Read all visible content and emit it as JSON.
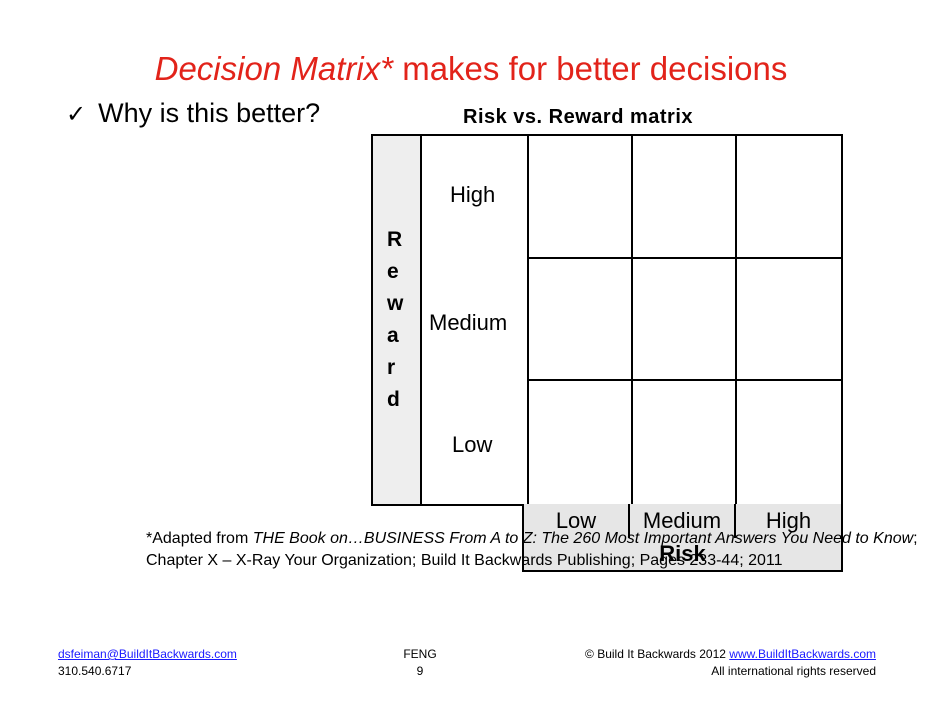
{
  "slide": {
    "title_italic": "Decision Matrix*",
    "title_rest": " makes for better decisions",
    "bullet_icon": "checkmark-icon",
    "bullet_text": "Why is this better?"
  },
  "matrix": {
    "title": "Risk vs. Reward matrix",
    "reward_axis_letters": [
      "R",
      "e",
      "w",
      "a",
      "r",
      "d"
    ],
    "reward_levels": [
      "High",
      "Medium",
      "Low"
    ],
    "risk_levels": [
      "Low",
      "Medium",
      "High"
    ],
    "risk_axis_label": "Risk"
  },
  "footnote": {
    "prefix": "*Adapted from ",
    "book_title": "THE Book on…BUSINESS From A to Z: The 260 Most Important Answers You Need to Know",
    "rest": "; Chapter X – X-Ray Your Organization; Build It Backwards Publishing; Pages 233-44; 2011"
  },
  "footer": {
    "email": "dsfeiman@BuildItBackwards.com",
    "phone": "310.540.6717",
    "center_label": "FENG",
    "page_number": "9",
    "copyright": "© Build It Backwards 2012 ",
    "website": "www.BuildItBackwards.com",
    "rights": "All international rights reserved"
  }
}
